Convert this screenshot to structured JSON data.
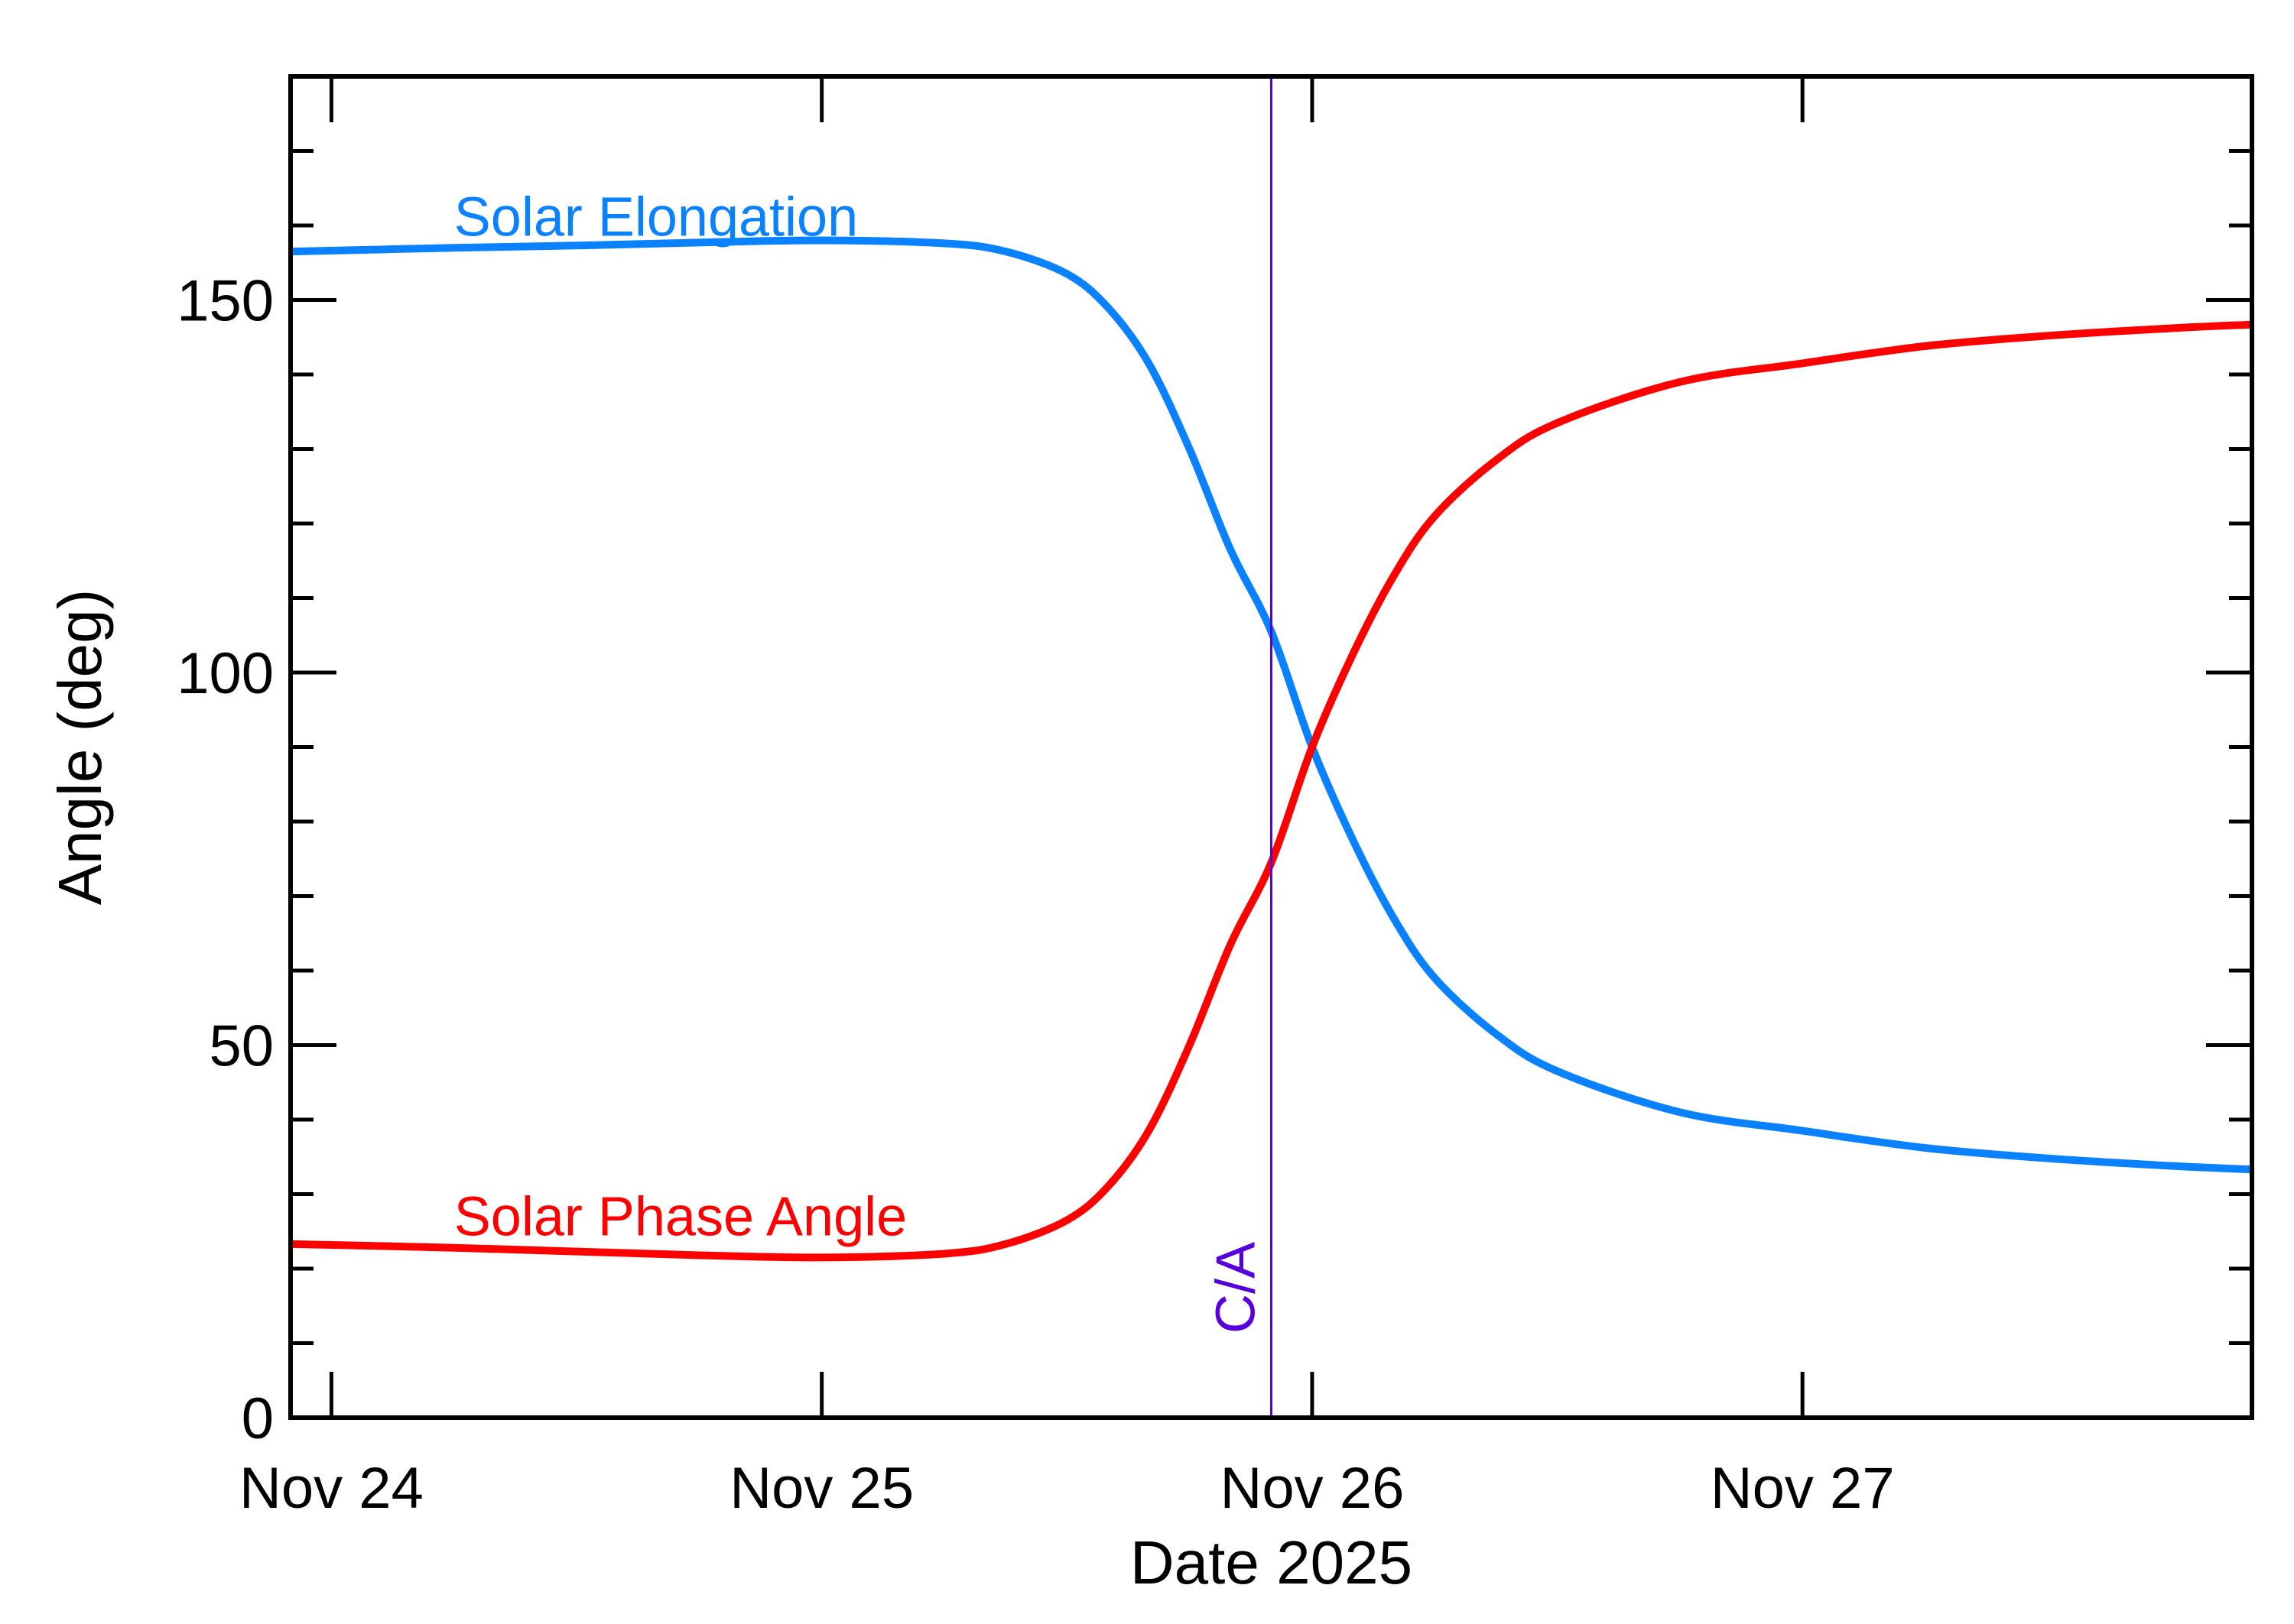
{
  "chart_data": {
    "type": "line",
    "xlabel": "Date 2025",
    "ylabel": "Angle (deg)",
    "x_tick_labels": [
      "Nov 24",
      "Nov 25",
      "Nov 26",
      "Nov 27"
    ],
    "x_tick_dates": [
      "2025-11-24",
      "2025-11-25",
      "2025-11-26",
      "2025-11-27"
    ],
    "xlim": [
      "2025-11-23 22:00",
      "2025-11-27 22:00"
    ],
    "y_tick_labels": [
      "0",
      "50",
      "100",
      "150"
    ],
    "ylim": [
      0,
      180
    ],
    "grid": false,
    "close_approach": {
      "label": "C/A",
      "date": "2025-11-25 22:00",
      "color": "#5500dd"
    },
    "series": [
      {
        "name": "Solar Elongation",
        "color": "#0a82ff",
        "points": [
          [
            "2025-11-23 22:00",
            156.5
          ],
          [
            "2025-11-24 06:00",
            157.0
          ],
          [
            "2025-11-24 12:00",
            157.3
          ],
          [
            "2025-11-24 18:00",
            157.7
          ],
          [
            "2025-11-25 00:00",
            158.0
          ],
          [
            "2025-11-25 06:00",
            157.6
          ],
          [
            "2025-11-25 09:00",
            156.5
          ],
          [
            "2025-11-25 12:00",
            153.5
          ],
          [
            "2025-11-25 14:00",
            149.0
          ],
          [
            "2025-11-25 16:00",
            141.5
          ],
          [
            "2025-11-25 18:00",
            130.0
          ],
          [
            "2025-11-25 20:00",
            116.5
          ],
          [
            "2025-11-25 22:00",
            105.5
          ],
          [
            "2025-11-26 00:00",
            90.0
          ],
          [
            "2025-11-26 02:00",
            77.5
          ],
          [
            "2025-11-26 04:00",
            67.0
          ],
          [
            "2025-11-26 06:00",
            59.0
          ],
          [
            "2025-11-26 09:00",
            51.5
          ],
          [
            "2025-11-26 12:00",
            46.5
          ],
          [
            "2025-11-26 18:00",
            41.0
          ],
          [
            "2025-11-27 00:00",
            38.5
          ],
          [
            "2025-11-27 06:00",
            36.2
          ],
          [
            "2025-11-27 12:00",
            34.8
          ],
          [
            "2025-11-27 18:00",
            33.8
          ],
          [
            "2025-11-27 22:00",
            33.3
          ]
        ]
      },
      {
        "name": "Solar Phase Angle",
        "color": "#ff0000",
        "points": [
          [
            "2025-11-23 22:00",
            23.3
          ],
          [
            "2025-11-24 06:00",
            22.8
          ],
          [
            "2025-11-24 12:00",
            22.3
          ],
          [
            "2025-11-24 18:00",
            21.8
          ],
          [
            "2025-11-25 00:00",
            21.5
          ],
          [
            "2025-11-25 06:00",
            22.0
          ],
          [
            "2025-11-25 09:00",
            23.3
          ],
          [
            "2025-11-25 12:00",
            26.5
          ],
          [
            "2025-11-25 14:00",
            31.0
          ],
          [
            "2025-11-25 16:00",
            38.5
          ],
          [
            "2025-11-25 18:00",
            50.0
          ],
          [
            "2025-11-25 20:00",
            63.5
          ],
          [
            "2025-11-25 22:00",
            74.5
          ],
          [
            "2025-11-26 00:00",
            90.0
          ],
          [
            "2025-11-26 02:00",
            102.5
          ],
          [
            "2025-11-26 04:00",
            113.0
          ],
          [
            "2025-11-26 06:00",
            121.0
          ],
          [
            "2025-11-26 09:00",
            128.5
          ],
          [
            "2025-11-26 12:00",
            133.5
          ],
          [
            "2025-11-26 18:00",
            139.0
          ],
          [
            "2025-11-27 00:00",
            141.5
          ],
          [
            "2025-11-27 06:00",
            143.8
          ],
          [
            "2025-11-27 12:00",
            145.2
          ],
          [
            "2025-11-27 18:00",
            146.2
          ],
          [
            "2025-11-27 22:00",
            146.7
          ]
        ]
      }
    ]
  }
}
